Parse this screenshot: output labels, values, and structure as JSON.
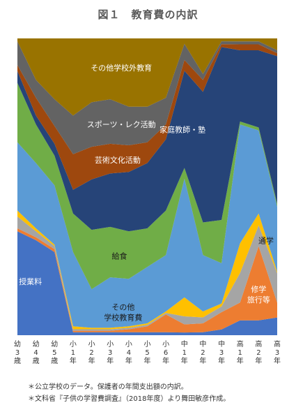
{
  "title": "図１　教育費の内訳",
  "notes": [
    "＊公立学校のデータ。保護者の年間支出額の内訳。",
    "＊文科省『子供の学習費調査』（2018年度）より舞田敏彦作成。"
  ],
  "chart_data": {
    "type": "area",
    "stacked": true,
    "normalized": true,
    "x": [
      "幼3歳",
      "幼4歳",
      "幼5歳",
      "小1年",
      "小2年",
      "小3年",
      "小4年",
      "小5年",
      "小6年",
      "中1年",
      "中2年",
      "中3年",
      "高1年",
      "高2年",
      "高3年"
    ],
    "ylim": [
      0,
      100
    ],
    "series": [
      {
        "name": "授業料",
        "color": "#4472C4",
        "values": [
          35,
          32,
          28,
          1,
          1,
          1,
          1,
          1,
          1,
          1,
          1,
          2,
          5,
          5,
          6
        ]
      },
      {
        "name": "修学旅行等",
        "color": "#ED7D31",
        "values": [
          1,
          1,
          1,
          0.5,
          0.5,
          0.5,
          1,
          2,
          6,
          3,
          3,
          6,
          6,
          25,
          5
        ]
      },
      {
        "name": "",
        "color": "#A5A5A5",
        "values": [
          4,
          2,
          1,
          0.5,
          0.5,
          0.5,
          0.5,
          0.5,
          0.5,
          3,
          2,
          2,
          10,
          7,
          10
        ]
      },
      {
        "name": "通学",
        "color": "#FFC000",
        "values": [
          2,
          1,
          0.5,
          1,
          0.5,
          0.5,
          0.5,
          0.5,
          0.5,
          7,
          2,
          1,
          10,
          4,
          0.5
        ]
      },
      {
        "name": "その他学校教育費",
        "color": "#5B9BD5",
        "values": [
          23,
          22,
          20,
          25,
          13,
          17,
          16,
          19,
          19,
          44,
          19,
          14,
          40,
          28,
          22
        ]
      },
      {
        "name": "給食",
        "color": "#70AD47",
        "values": [
          20,
          13,
          10,
          13,
          20,
          17,
          16,
          13,
          15,
          4,
          11,
          15,
          1,
          1,
          1
        ]
      },
      {
        "name": "家庭教師・塾",
        "color": "#264478",
        "values": [
          4,
          3,
          4,
          8,
          17,
          18,
          20,
          22,
          24,
          36,
          44,
          60,
          24,
          26,
          50
        ]
      },
      {
        "name": "芸術文化活動",
        "color": "#9E480E",
        "values": [
          2,
          6,
          6,
          12,
          11,
          10,
          9,
          7,
          5,
          4,
          4,
          1,
          2,
          2,
          1
        ]
      },
      {
        "name": "スポーツ・レク活動",
        "color": "#636363",
        "values": [
          8,
          6,
          9,
          13,
          15,
          15,
          13,
          12,
          9,
          6,
          2,
          1,
          1,
          1,
          1
        ]
      },
      {
        "name": "その他学校外教育",
        "color": "#997300",
        "values": [
          1,
          14,
          20.5,
          26,
          21.5,
          20.5,
          23,
          23,
          20,
          2,
          12,
          1,
          1,
          1,
          4
        ]
      }
    ]
  }
}
